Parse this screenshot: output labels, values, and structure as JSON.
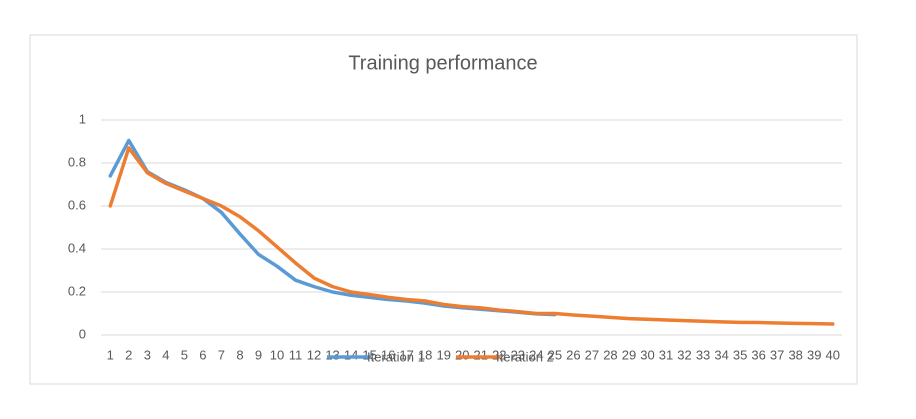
{
  "chart_data": {
    "type": "line",
    "title": "Training performance",
    "categories": [
      1,
      2,
      3,
      4,
      5,
      6,
      7,
      8,
      9,
      10,
      11,
      12,
      13,
      14,
      15,
      16,
      17,
      18,
      19,
      20,
      21,
      22,
      23,
      24,
      25,
      26,
      27,
      28,
      29,
      30,
      31,
      32,
      33,
      34,
      35,
      36,
      37,
      38,
      39,
      40
    ],
    "series": [
      {
        "name": "Iteration 1",
        "color": "#5b9bd5",
        "values": [
          0.74,
          0.905,
          0.76,
          0.71,
          0.675,
          0.635,
          0.57,
          0.47,
          0.375,
          0.32,
          0.255,
          0.225,
          0.2,
          0.185,
          0.175,
          0.165,
          0.158,
          0.148,
          0.135,
          0.127,
          0.12,
          0.113,
          0.106,
          0.098,
          0.095,
          null,
          null,
          null,
          null,
          null,
          null,
          null,
          null,
          null,
          null,
          null,
          null,
          null,
          null,
          null
        ]
      },
      {
        "name": "Iteration 2",
        "color": "#ed7d31",
        "values": [
          0.6,
          0.87,
          0.755,
          0.705,
          0.67,
          0.635,
          0.6,
          0.55,
          0.485,
          0.41,
          0.335,
          0.265,
          0.225,
          0.2,
          0.188,
          0.175,
          0.165,
          0.158,
          0.142,
          0.132,
          0.126,
          0.116,
          0.109,
          0.1,
          0.1,
          0.093,
          0.088,
          0.082,
          0.076,
          0.073,
          0.07,
          0.067,
          0.064,
          0.061,
          0.059,
          0.058,
          0.056,
          0.054,
          0.053,
          0.051
        ]
      }
    ],
    "ylim": [
      0,
      1
    ],
    "yticks": [
      0,
      0.2,
      0.4,
      0.6,
      0.8,
      1
    ],
    "grid": true,
    "legend": "bottom"
  }
}
